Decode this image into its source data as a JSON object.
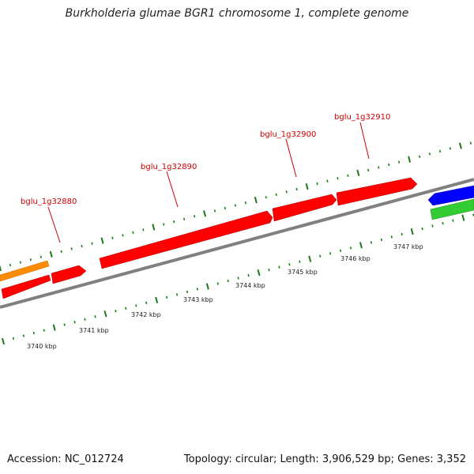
{
  "title": "Burkholderia glumae BGR1 chromosome 1, complete genome",
  "footer": {
    "accession": "Accession: NC_012724",
    "summary": "Topology: circular; Length: 3,906,529 bp; Genes: 3,352"
  },
  "gene_labels": [
    {
      "id": "g1",
      "text": "bglu_1g32880"
    },
    {
      "id": "g2",
      "text": "bglu_1g32890"
    },
    {
      "id": "g3",
      "text": "bglu_1g32900"
    },
    {
      "id": "g4",
      "text": "bglu_1g32910"
    }
  ],
  "kbp_labels": [
    "3740 kbp",
    "3741 kbp",
    "3742 kbp",
    "3743 kbp",
    "3744 kbp",
    "3745 kbp",
    "3746 kbp",
    "3747 kbp"
  ],
  "colors": {
    "cds": "#ff0000",
    "trna": "#ff8c00",
    "other_blue": "#0000ff",
    "other_green": "#33cc33",
    "backbone": "#808080",
    "ticks": "#1a7a1a",
    "gene_label": "#cc0000"
  }
}
